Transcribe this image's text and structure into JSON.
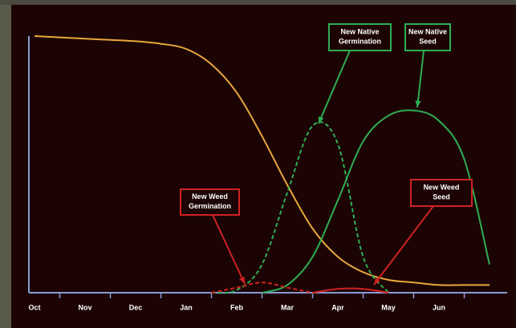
{
  "chart_data": {
    "type": "line",
    "categories": [
      "Oct",
      null,
      "Nov",
      null,
      "Dec",
      null,
      "Jan",
      null,
      "Feb",
      null,
      "Mar",
      null,
      "Apr",
      null,
      "May",
      null,
      "Jun",
      null,
      null
    ],
    "ylim": [
      0,
      100
    ],
    "series": [
      {
        "color": "#e8a63c",
        "dash": false,
        "values": [
          100,
          99.5,
          99,
          98.5,
          98,
          97,
          95,
          89,
          78,
          61,
          42,
          25,
          14,
          8,
          5,
          4,
          3,
          3,
          3
        ]
      },
      {
        "name": "New Native Germination",
        "color": "#2fae55",
        "dash": true,
        "values": [
          null,
          null,
          null,
          null,
          null,
          null,
          null,
          0,
          1,
          11,
          39,
          65,
          58,
          14,
          0,
          null,
          null,
          null,
          null
        ]
      },
      {
        "name": "New Native Seed",
        "color": "#2fae55",
        "dash": false,
        "values": [
          null,
          null,
          null,
          null,
          null,
          null,
          null,
          null,
          null,
          0,
          3,
          14,
          36,
          59,
          69,
          71,
          67,
          52,
          11
        ]
      },
      {
        "name": "New Weed Germination",
        "color": "#d02222",
        "dash": true,
        "values": [
          null,
          null,
          null,
          null,
          null,
          null,
          null,
          0,
          2,
          4,
          2,
          0,
          null,
          null,
          null,
          null,
          null,
          null,
          null
        ]
      },
      {
        "name": "New Weed Seed",
        "color": "#d02222",
        "dash": false,
        "values": [
          null,
          null,
          null,
          null,
          null,
          null,
          null,
          null,
          null,
          null,
          null,
          0,
          1.5,
          1.5,
          0,
          null,
          null,
          null,
          null
        ]
      }
    ]
  }
}
